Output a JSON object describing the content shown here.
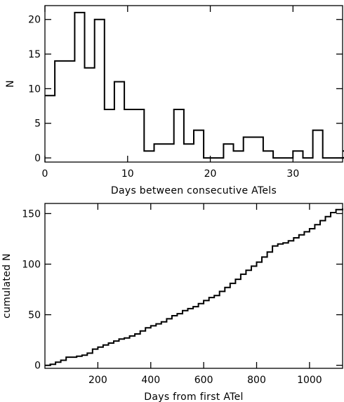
{
  "chart_data": [
    {
      "type": "histogram",
      "title": "",
      "xlabel": "Days between consecutive ATels",
      "ylabel": "N",
      "xlim": [
        0,
        36
      ],
      "ylim": [
        -0.6,
        22
      ],
      "xticks": [
        0,
        10,
        20,
        30
      ],
      "yticks": [
        0,
        5,
        10,
        15,
        20
      ],
      "xtick_labels": [
        "0",
        "10",
        "20",
        "30"
      ],
      "ytick_labels": [
        "0",
        "5",
        "10",
        "15",
        "20"
      ],
      "bin_width": 1.2,
      "bin_start": 0,
      "values": [
        9,
        14,
        14,
        21,
        13,
        20,
        7,
        11,
        7,
        7,
        1,
        2,
        2,
        7,
        2,
        4,
        0,
        0,
        2,
        1,
        3,
        3,
        1,
        0,
        0,
        1,
        0,
        4,
        0,
        0,
        0,
        0,
        0,
        1
      ],
      "grid": false,
      "legend": "none"
    },
    {
      "type": "line",
      "style": "step",
      "title": "",
      "xlabel": "Days from first ATel",
      "ylabel": "cumulated N",
      "xlim": [
        0,
        1125
      ],
      "ylim": [
        -3,
        160
      ],
      "xticks": [
        200,
        400,
        600,
        800,
        1000
      ],
      "yticks": [
        0,
        50,
        100,
        150
      ],
      "xtick_labels": [
        "200",
        "400",
        "600",
        "800",
        "1000"
      ],
      "ytick_labels": [
        "0",
        "50",
        "100",
        "150"
      ],
      "x": [
        0,
        20,
        40,
        60,
        80,
        100,
        120,
        140,
        160,
        180,
        200,
        220,
        240,
        260,
        280,
        300,
        320,
        340,
        360,
        380,
        400,
        420,
        440,
        460,
        480,
        500,
        520,
        540,
        560,
        580,
        600,
        620,
        640,
        660,
        680,
        700,
        720,
        740,
        760,
        780,
        800,
        820,
        840,
        860,
        880,
        900,
        920,
        940,
        960,
        980,
        1000,
        1020,
        1040,
        1060,
        1080,
        1100,
        1125
      ],
      "y": [
        0,
        1,
        3,
        5,
        8,
        8,
        9,
        10,
        12,
        16,
        18,
        20,
        22,
        24,
        26,
        27,
        29,
        31,
        34,
        37,
        39,
        41,
        43,
        46,
        49,
        51,
        54,
        56,
        58,
        61,
        64,
        67,
        69,
        73,
        77,
        81,
        85,
        90,
        94,
        98,
        102,
        107,
        112,
        118,
        120,
        121,
        123,
        126,
        129,
        132,
        135,
        139,
        143,
        147,
        151,
        154,
        155
      ],
      "grid": false,
      "legend": "none"
    }
  ]
}
